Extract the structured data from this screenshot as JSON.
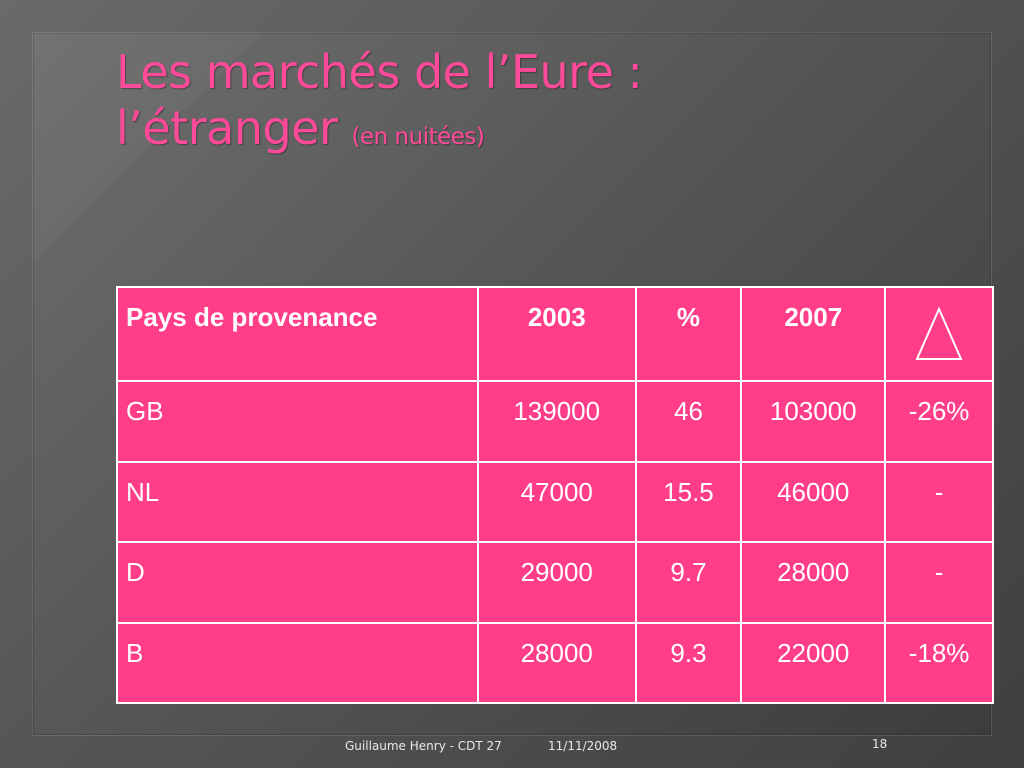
{
  "slide": {
    "title_main_line1": "Les marchés de l’Eure :",
    "title_main_line2": "l’étranger",
    "title_sub": "(en nuitées)"
  },
  "table": {
    "headers": [
      "Pays de provenance",
      "2003",
      "%",
      "2007"
    ],
    "delta_header_icon": "triangle-outline-icon",
    "rows": [
      {
        "country": "GB",
        "y2003": "139000",
        "pct": "46",
        "y2007": "103000",
        "change": "-26%"
      },
      {
        "country": "NL",
        "y2003": "47000",
        "pct": "15.5",
        "y2007": "46000",
        "change": "-"
      },
      {
        "country": "D",
        "y2003": "29000",
        "pct": "9.7",
        "y2007": "28000",
        "change": "-"
      },
      {
        "country": "B",
        "y2003": "28000",
        "pct": "9.3",
        "y2007": "22000",
        "change": "-18%"
      }
    ]
  },
  "footer": {
    "author": "Guillaume Henry - CDT 27",
    "date": "11/11/2008",
    "page_number": "18"
  },
  "colors": {
    "accent": "#ff4a99",
    "table_fill": "#ff3d88",
    "background": "#555555"
  }
}
